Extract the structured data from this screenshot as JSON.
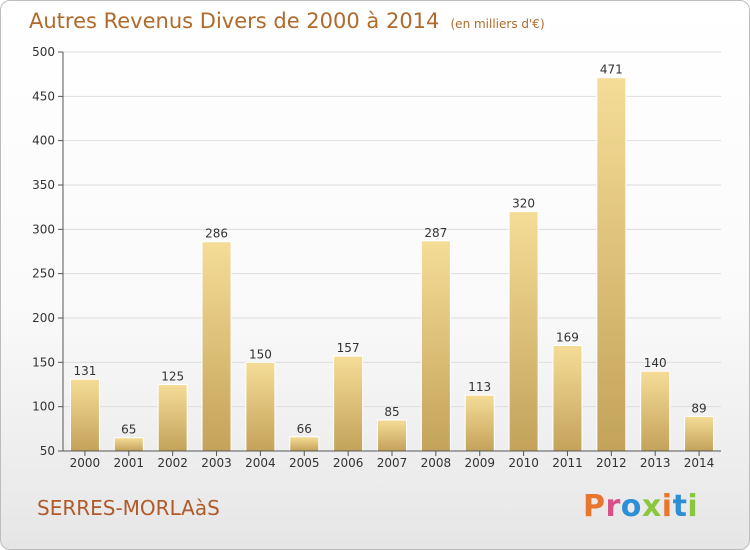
{
  "chart_data": {
    "type": "bar",
    "title": "Autres Revenus Divers de 2000 à 2014",
    "subtitle": "(en milliers d'€)",
    "xlabel": "",
    "ylabel": "",
    "categories": [
      "2000",
      "2001",
      "2002",
      "2003",
      "2004",
      "2005",
      "2006",
      "2007",
      "2008",
      "2009",
      "2010",
      "2011",
      "2012",
      "2013",
      "2014"
    ],
    "values": [
      131,
      65,
      125,
      286,
      150,
      66,
      157,
      85,
      287,
      113,
      320,
      169,
      471,
      140,
      89
    ],
    "ylim": [
      50,
      500
    ],
    "yticks": [
      50,
      100,
      150,
      200,
      250,
      300,
      350,
      400,
      450,
      500
    ],
    "grid": true,
    "legend": "none",
    "bar_color": "#ecd28a"
  },
  "footer": {
    "location": "SERRES-MORLAàS",
    "logo_text": "Proxiti",
    "logo_colors": [
      "#e8762c",
      "#d94f8a",
      "#2d8fd6",
      "#8cc63f",
      "#e8762c",
      "#2d8fd6",
      "#8cc63f"
    ]
  }
}
